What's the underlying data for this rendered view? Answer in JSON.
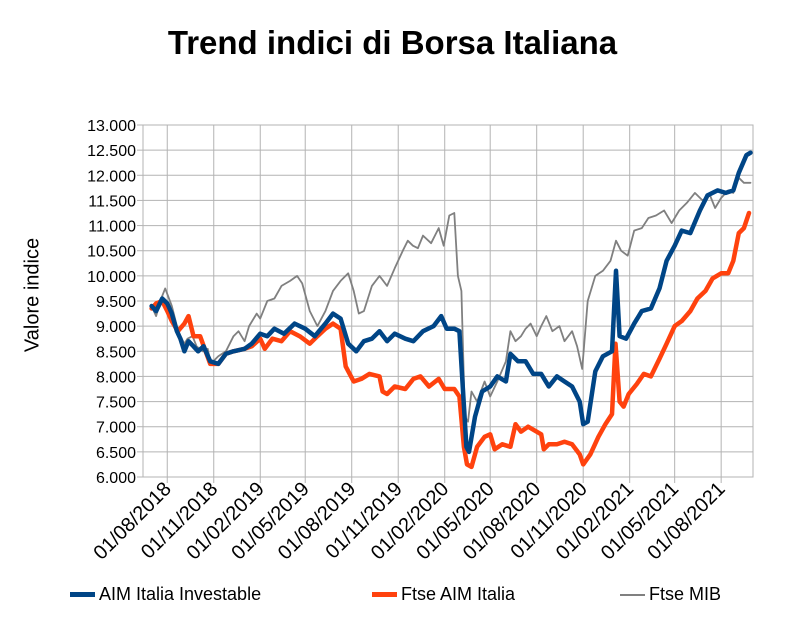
{
  "chart_data": {
    "type": "line",
    "title": "Trend indici di Borsa Italiana",
    "xlabel": "",
    "ylabel": "Valore indice",
    "ylim": [
      6000,
      13000
    ],
    "yticks": [
      "13.000",
      "12.500",
      "12.000",
      "11.500",
      "11.000",
      "10.500",
      "10.000",
      "9.500",
      "9.000",
      "8.500",
      "8.000",
      "7.500",
      "7.000",
      "6.500",
      "6.000"
    ],
    "xticks": [
      "01/08/2018",
      "01/11/2018",
      "01/02/2019",
      "01/05/2019",
      "01/08/2019",
      "01/11/2019",
      "01/02/2020",
      "01/05/2020",
      "01/08/2020",
      "01/11/2020",
      "01/02/2021",
      "01/05/2021",
      "01/08/2021"
    ],
    "xlim": [
      "2018-06-14",
      "2021-10-03"
    ],
    "grid": true,
    "legend": "bottom",
    "series": [
      {
        "name": "AIM Italia Investable",
        "color": "#004586",
        "points": [
          [
            "2018-07-01",
            9400
          ],
          [
            "2018-07-10",
            9300
          ],
          [
            "2018-07-22",
            9550
          ],
          [
            "2018-08-01",
            9450
          ],
          [
            "2018-08-10",
            9250
          ],
          [
            "2018-08-20",
            8900
          ],
          [
            "2018-08-27",
            8750
          ],
          [
            "2018-09-04",
            8500
          ],
          [
            "2018-09-12",
            8700
          ],
          [
            "2018-09-22",
            8600
          ],
          [
            "2018-10-01",
            8500
          ],
          [
            "2018-10-12",
            8600
          ],
          [
            "2018-10-25",
            8300
          ],
          [
            "2018-11-10",
            8250
          ],
          [
            "2018-11-25",
            8450
          ],
          [
            "2018-12-10",
            8500
          ],
          [
            "2019-01-01",
            8550
          ],
          [
            "2019-01-15",
            8650
          ],
          [
            "2019-02-01",
            8850
          ],
          [
            "2019-02-15",
            8800
          ],
          [
            "2019-03-01",
            8950
          ],
          [
            "2019-03-20",
            8850
          ],
          [
            "2019-04-10",
            9050
          ],
          [
            "2019-05-01",
            8950
          ],
          [
            "2019-05-20",
            8800
          ],
          [
            "2019-06-10",
            9050
          ],
          [
            "2019-06-25",
            9250
          ],
          [
            "2019-07-10",
            9150
          ],
          [
            "2019-07-25",
            8650
          ],
          [
            "2019-08-10",
            8500
          ],
          [
            "2019-08-25",
            8700
          ],
          [
            "2019-09-10",
            8750
          ],
          [
            "2019-09-25",
            8900
          ],
          [
            "2019-10-10",
            8700
          ],
          [
            "2019-10-25",
            8850
          ],
          [
            "2019-11-15",
            8750
          ],
          [
            "2019-12-01",
            8700
          ],
          [
            "2019-12-20",
            8900
          ],
          [
            "2020-01-10",
            9000
          ],
          [
            "2020-01-25",
            9200
          ],
          [
            "2020-02-05",
            8950
          ],
          [
            "2020-02-20",
            8950
          ],
          [
            "2020-03-01",
            8900
          ],
          [
            "2020-03-15",
            6600
          ],
          [
            "2020-03-20",
            6500
          ],
          [
            "2020-04-01",
            7200
          ],
          [
            "2020-04-15",
            7700
          ],
          [
            "2020-05-01",
            7800
          ],
          [
            "2020-05-15",
            8000
          ],
          [
            "2020-06-01",
            7900
          ],
          [
            "2020-06-10",
            8450
          ],
          [
            "2020-06-25",
            8300
          ],
          [
            "2020-07-10",
            8300
          ],
          [
            "2020-07-25",
            8050
          ],
          [
            "2020-08-10",
            8050
          ],
          [
            "2020-08-25",
            7800
          ],
          [
            "2020-09-10",
            8000
          ],
          [
            "2020-09-25",
            7900
          ],
          [
            "2020-10-10",
            7800
          ],
          [
            "2020-10-25",
            7500
          ],
          [
            "2020-11-01",
            7050
          ],
          [
            "2020-11-10",
            7100
          ],
          [
            "2020-11-25",
            8100
          ],
          [
            "2020-12-10",
            8400
          ],
          [
            "2020-12-28",
            8500
          ],
          [
            "2021-01-05",
            10100
          ],
          [
            "2021-01-12",
            8800
          ],
          [
            "2021-01-25",
            8750
          ],
          [
            "2021-02-10",
            9050
          ],
          [
            "2021-02-25",
            9300
          ],
          [
            "2021-03-15",
            9350
          ],
          [
            "2021-04-01",
            9750
          ],
          [
            "2021-04-15",
            10300
          ],
          [
            "2021-05-01",
            10600
          ],
          [
            "2021-05-15",
            10900
          ],
          [
            "2021-06-01",
            10850
          ],
          [
            "2021-06-20",
            11300
          ],
          [
            "2021-07-05",
            11600
          ],
          [
            "2021-07-25",
            11700
          ],
          [
            "2021-08-10",
            11650
          ],
          [
            "2021-08-25",
            11700
          ],
          [
            "2021-09-05",
            12050
          ],
          [
            "2021-09-20",
            12400
          ],
          [
            "2021-09-28",
            12450
          ]
        ]
      },
      {
        "name": "Ftse AIM Italia",
        "color": "#ff420e",
        "points": [
          [
            "2018-07-01",
            9350
          ],
          [
            "2018-07-10",
            9450
          ],
          [
            "2018-07-22",
            9500
          ],
          [
            "2018-08-01",
            9300
          ],
          [
            "2018-08-10",
            9100
          ],
          [
            "2018-08-22",
            8900
          ],
          [
            "2018-09-04",
            9050
          ],
          [
            "2018-09-12",
            9200
          ],
          [
            "2018-09-22",
            8800
          ],
          [
            "2018-10-05",
            8800
          ],
          [
            "2018-10-25",
            8250
          ],
          [
            "2018-11-10",
            8250
          ],
          [
            "2018-11-25",
            8450
          ],
          [
            "2018-12-10",
            8500
          ],
          [
            "2019-01-01",
            8550
          ],
          [
            "2019-01-15",
            8600
          ],
          [
            "2019-02-01",
            8750
          ],
          [
            "2019-02-10",
            8550
          ],
          [
            "2019-02-25",
            8750
          ],
          [
            "2019-03-15",
            8700
          ],
          [
            "2019-04-01",
            8900
          ],
          [
            "2019-04-20",
            8800
          ],
          [
            "2019-05-10",
            8650
          ],
          [
            "2019-05-25",
            8800
          ],
          [
            "2019-06-10",
            8950
          ],
          [
            "2019-06-25",
            9050
          ],
          [
            "2019-07-10",
            8950
          ],
          [
            "2019-07-20",
            8200
          ],
          [
            "2019-08-05",
            7900
          ],
          [
            "2019-08-20",
            7950
          ],
          [
            "2019-09-05",
            8050
          ],
          [
            "2019-09-25",
            8000
          ],
          [
            "2019-10-01",
            7700
          ],
          [
            "2019-10-10",
            7650
          ],
          [
            "2019-10-25",
            7800
          ],
          [
            "2019-11-15",
            7750
          ],
          [
            "2019-12-01",
            7950
          ],
          [
            "2019-12-15",
            8000
          ],
          [
            "2020-01-01",
            7800
          ],
          [
            "2020-01-20",
            7950
          ],
          [
            "2020-02-01",
            7750
          ],
          [
            "2020-02-20",
            7750
          ],
          [
            "2020-03-01",
            7600
          ],
          [
            "2020-03-10",
            6600
          ],
          [
            "2020-03-16",
            6250
          ],
          [
            "2020-03-25",
            6200
          ],
          [
            "2020-04-05",
            6600
          ],
          [
            "2020-04-20",
            6800
          ],
          [
            "2020-05-01",
            6850
          ],
          [
            "2020-05-10",
            6550
          ],
          [
            "2020-05-25",
            6650
          ],
          [
            "2020-06-10",
            6600
          ],
          [
            "2020-06-20",
            7050
          ],
          [
            "2020-07-01",
            6900
          ],
          [
            "2020-07-15",
            7000
          ],
          [
            "2020-08-01",
            6900
          ],
          [
            "2020-08-10",
            6850
          ],
          [
            "2020-08-15",
            6550
          ],
          [
            "2020-08-25",
            6650
          ],
          [
            "2020-09-10",
            6650
          ],
          [
            "2020-09-25",
            6700
          ],
          [
            "2020-10-10",
            6650
          ],
          [
            "2020-10-25",
            6450
          ],
          [
            "2020-11-01",
            6250
          ],
          [
            "2020-11-15",
            6450
          ],
          [
            "2020-12-01",
            6800
          ],
          [
            "2020-12-15",
            7050
          ],
          [
            "2020-12-28",
            7250
          ],
          [
            "2021-01-04",
            8650
          ],
          [
            "2021-01-12",
            7500
          ],
          [
            "2021-01-20",
            7400
          ],
          [
            "2021-01-30",
            7650
          ],
          [
            "2021-02-15",
            7850
          ],
          [
            "2021-03-01",
            8050
          ],
          [
            "2021-03-15",
            8000
          ],
          [
            "2021-04-01",
            8350
          ],
          [
            "2021-04-15",
            8650
          ],
          [
            "2021-05-01",
            9000
          ],
          [
            "2021-05-15",
            9100
          ],
          [
            "2021-06-01",
            9300
          ],
          [
            "2021-06-15",
            9550
          ],
          [
            "2021-07-01",
            9700
          ],
          [
            "2021-07-15",
            9950
          ],
          [
            "2021-08-01",
            10050
          ],
          [
            "2021-08-15",
            10050
          ],
          [
            "2021-08-25",
            10300
          ],
          [
            "2021-09-05",
            10850
          ],
          [
            "2021-09-15",
            10950
          ],
          [
            "2021-09-25",
            11250
          ]
        ]
      },
      {
        "name": "Ftse MIB",
        "color": "#808080",
        "points": [
          [
            "2018-07-01",
            9400
          ],
          [
            "2018-07-10",
            9200
          ],
          [
            "2018-07-20",
            9550
          ],
          [
            "2018-07-28",
            9750
          ],
          [
            "2018-08-10",
            9400
          ],
          [
            "2018-08-20",
            9000
          ],
          [
            "2018-08-27",
            8800
          ],
          [
            "2018-09-04",
            8650
          ],
          [
            "2018-09-10",
            8750
          ],
          [
            "2018-09-20",
            8800
          ],
          [
            "2018-09-28",
            8600
          ],
          [
            "2018-10-10",
            8500
          ],
          [
            "2018-10-20",
            8550
          ],
          [
            "2018-10-26",
            8250
          ],
          [
            "2018-11-10",
            8400
          ],
          [
            "2018-11-25",
            8500
          ],
          [
            "2018-12-10",
            8800
          ],
          [
            "2018-12-20",
            8900
          ],
          [
            "2019-01-01",
            8700
          ],
          [
            "2019-01-10",
            9000
          ],
          [
            "2019-01-25",
            9250
          ],
          [
            "2019-02-01",
            9150
          ],
          [
            "2019-02-15",
            9500
          ],
          [
            "2019-03-01",
            9550
          ],
          [
            "2019-03-15",
            9800
          ],
          [
            "2019-04-01",
            9900
          ],
          [
            "2019-04-15",
            10000
          ],
          [
            "2019-04-25",
            9850
          ],
          [
            "2019-05-10",
            9300
          ],
          [
            "2019-05-25",
            9000
          ],
          [
            "2019-06-10",
            9300
          ],
          [
            "2019-06-25",
            9700
          ],
          [
            "2019-07-10",
            9900
          ],
          [
            "2019-07-25",
            10050
          ],
          [
            "2019-08-05",
            9700
          ],
          [
            "2019-08-15",
            9250
          ],
          [
            "2019-08-25",
            9300
          ],
          [
            "2019-09-10",
            9800
          ],
          [
            "2019-09-25",
            10000
          ],
          [
            "2019-10-10",
            9800
          ],
          [
            "2019-10-25",
            10150
          ],
          [
            "2019-11-10",
            10500
          ],
          [
            "2019-11-20",
            10700
          ],
          [
            "2019-11-30",
            10600
          ],
          [
            "2019-12-10",
            10550
          ],
          [
            "2019-12-20",
            10800
          ],
          [
            "2020-01-05",
            10650
          ],
          [
            "2020-01-20",
            10950
          ],
          [
            "2020-01-30",
            10600
          ],
          [
            "2020-02-10",
            11200
          ],
          [
            "2020-02-20",
            11250
          ],
          [
            "2020-02-27",
            10000
          ],
          [
            "2020-03-05",
            9700
          ],
          [
            "2020-03-12",
            7200
          ],
          [
            "2020-03-18",
            7100
          ],
          [
            "2020-03-25",
            7700
          ],
          [
            "2020-04-05",
            7500
          ],
          [
            "2020-04-20",
            7900
          ],
          [
            "2020-05-01",
            7600
          ],
          [
            "2020-05-15",
            7900
          ],
          [
            "2020-06-01",
            8300
          ],
          [
            "2020-06-10",
            8900
          ],
          [
            "2020-06-20",
            8700
          ],
          [
            "2020-07-01",
            8800
          ],
          [
            "2020-07-10",
            8950
          ],
          [
            "2020-07-20",
            9050
          ],
          [
            "2020-08-01",
            8800
          ],
          [
            "2020-08-10",
            9000
          ],
          [
            "2020-08-20",
            9200
          ],
          [
            "2020-09-01",
            8900
          ],
          [
            "2020-09-15",
            9000
          ],
          [
            "2020-09-25",
            8700
          ],
          [
            "2020-10-10",
            8900
          ],
          [
            "2020-10-20",
            8600
          ],
          [
            "2020-10-30",
            8150
          ],
          [
            "2020-11-10",
            9500
          ],
          [
            "2020-11-25",
            10000
          ],
          [
            "2020-12-10",
            10100
          ],
          [
            "2020-12-25",
            10300
          ],
          [
            "2021-01-05",
            10700
          ],
          [
            "2021-01-15",
            10500
          ],
          [
            "2021-01-28",
            10400
          ],
          [
            "2021-02-10",
            10900
          ],
          [
            "2021-02-25",
            10950
          ],
          [
            "2021-03-10",
            11150
          ],
          [
            "2021-03-25",
            11200
          ],
          [
            "2021-04-10",
            11300
          ],
          [
            "2021-04-25",
            11050
          ],
          [
            "2021-05-10",
            11300
          ],
          [
            "2021-05-25",
            11450
          ],
          [
            "2021-06-10",
            11650
          ],
          [
            "2021-06-25",
            11500
          ],
          [
            "2021-07-10",
            11600
          ],
          [
            "2021-07-20",
            11350
          ],
          [
            "2021-08-01",
            11550
          ],
          [
            "2021-08-15",
            11700
          ],
          [
            "2021-08-25",
            11650
          ],
          [
            "2021-09-05",
            11950
          ],
          [
            "2021-09-15",
            11850
          ],
          [
            "2021-09-28",
            11850
          ]
        ]
      }
    ]
  }
}
